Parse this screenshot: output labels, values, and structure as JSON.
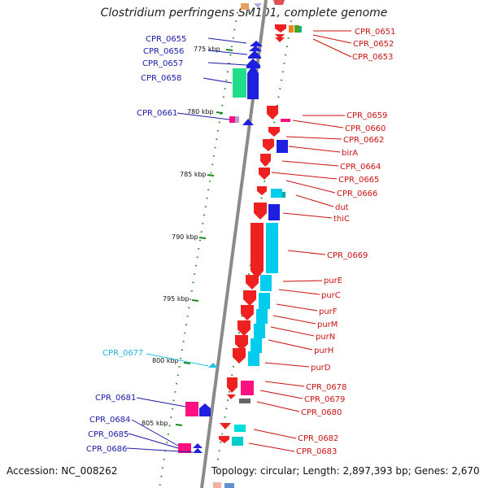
{
  "title": "Clostridium perfringens SM101, complete genome",
  "footer": {
    "accession": "Accession: NC_008262",
    "stats": "Topology: circular; Length: 2,897,393 bp; Genes: 2,670"
  },
  "colors": {
    "left_label": "#1a1aa8",
    "left_label_light": "#22b0e0",
    "right_label": "#cc1111",
    "backbone": "#8a8a8a",
    "ruler_dots": "#1e8a1e"
  },
  "scale_labels": [
    "775 kbp",
    "780 kbp",
    "785 kbp",
    "790 kbp",
    "795 kbp",
    "800 kbp",
    "805 kbp"
  ],
  "left_genes": [
    "CPR_0655",
    "CPR_0656",
    "CPR_0657",
    "CPR_0658",
    "CPR_0661",
    "CPR_0677",
    "CPR_0681",
    "CPR_0684",
    "CPR_0685",
    "CPR_0686"
  ],
  "right_genes": [
    "CPR_0651",
    "CPR_0652",
    "CPR_0653",
    "CPR_0659",
    "CPR_0660",
    "CPR_0662",
    "birA",
    "CPR_0664",
    "CPR_0665",
    "CPR_0666",
    "dut",
    "thiC",
    "CPR_0669",
    "purE",
    "purC",
    "purF",
    "purM",
    "purN",
    "purH",
    "purD",
    "CPR_0678",
    "CPR_0679",
    "CPR_0680",
    "CPR_0682",
    "CPR_0683"
  ]
}
